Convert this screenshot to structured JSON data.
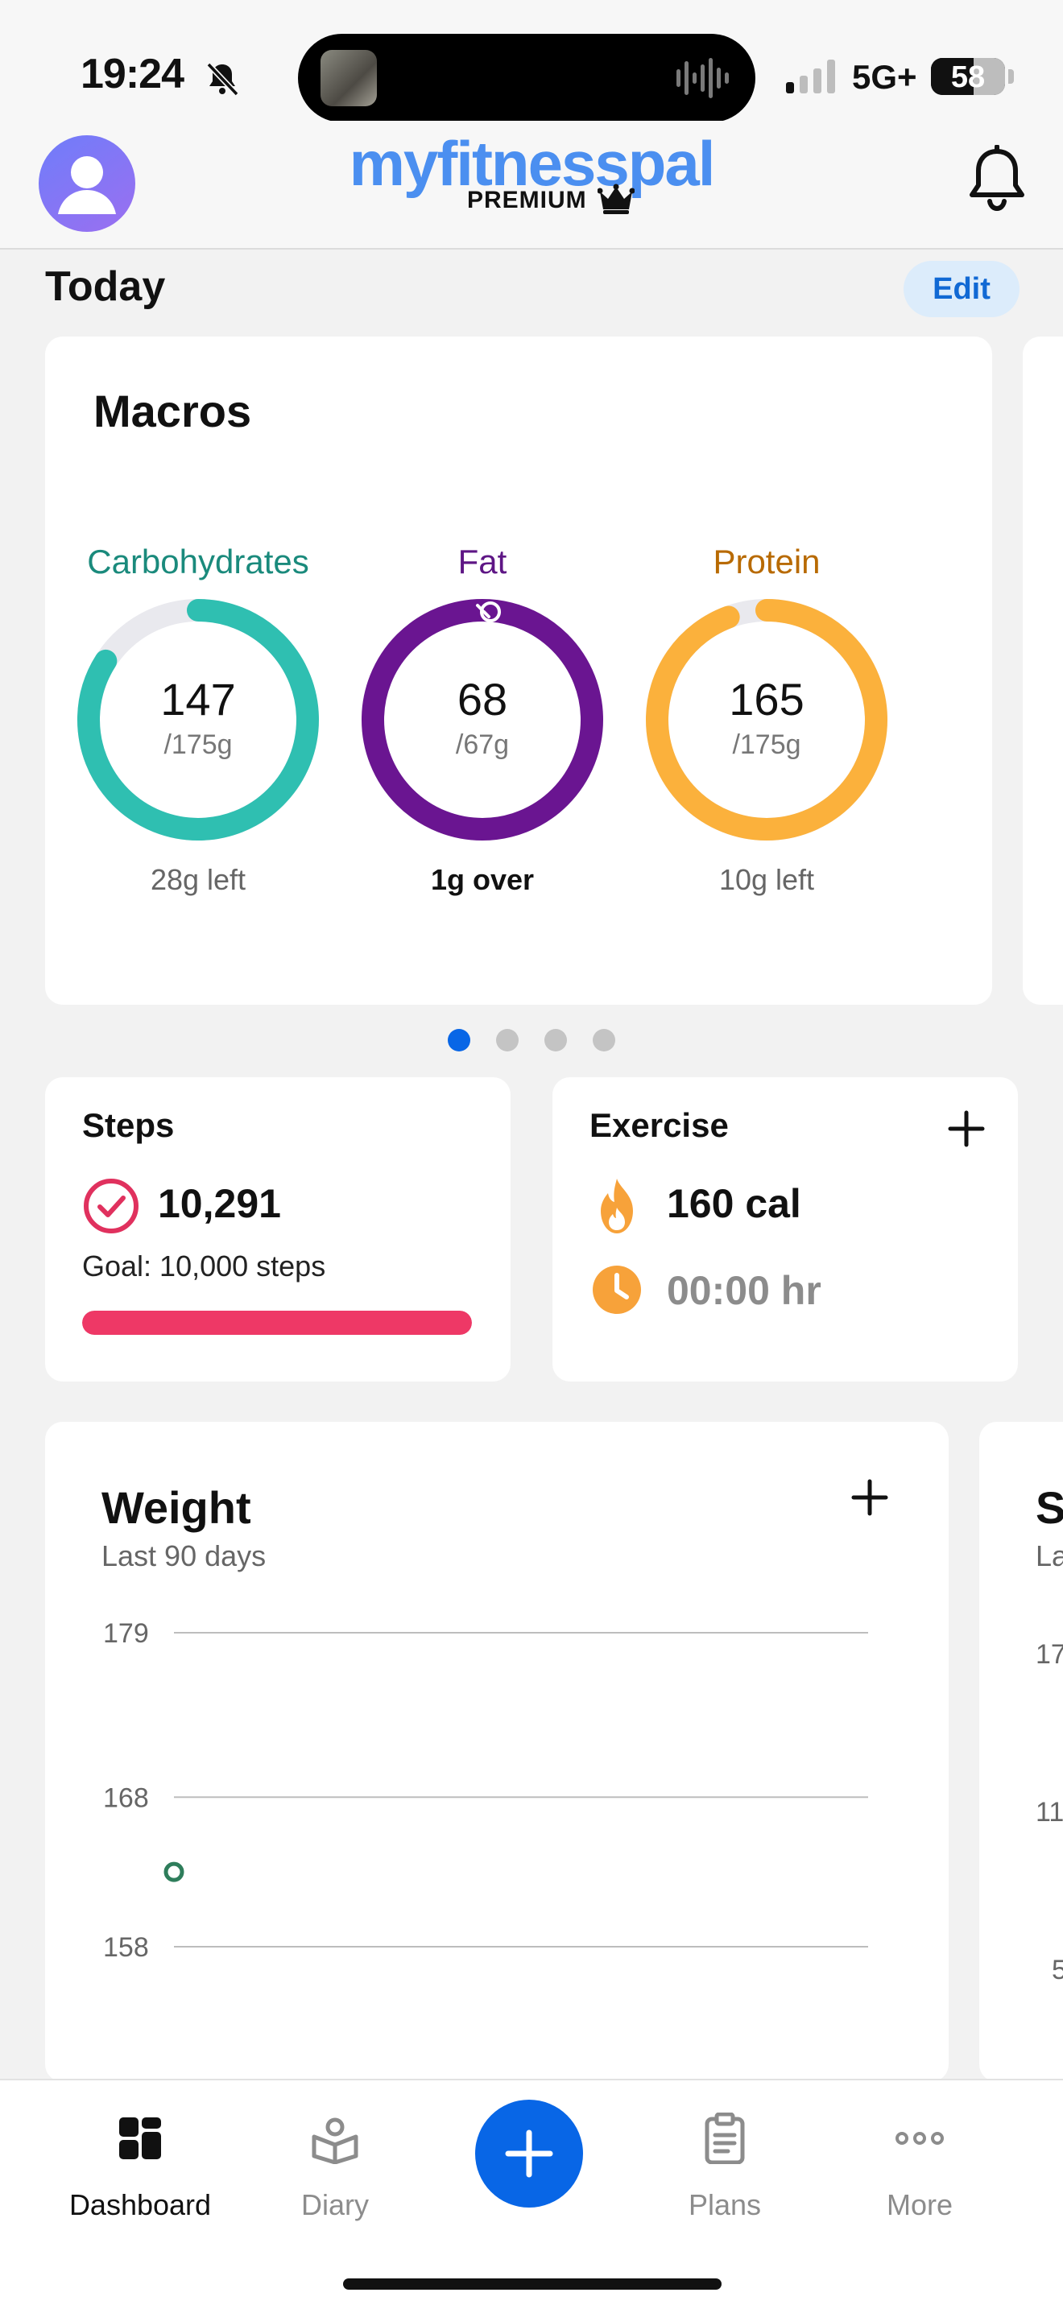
{
  "status_bar": {
    "time": "19:24",
    "network": "5G+",
    "battery": "58",
    "battery_level": 0.58
  },
  "header": {
    "brand": "myfitnesspal",
    "tier": "PREMIUM",
    "icons": [
      "avatar",
      "crown-icon",
      "bell-icon"
    ]
  },
  "today": {
    "title": "Today",
    "edit_label": "Edit"
  },
  "macros": {
    "title": "Macros",
    "items": [
      {
        "name": "Carbohydrates",
        "value": "147",
        "goal": "/175g",
        "remaining": "28g left",
        "fraction": 0.84,
        "color": "#2fbfb1",
        "name_color": "#1a8a7c"
      },
      {
        "name": "Fat",
        "value": "68",
        "goal": "/67g",
        "remaining": "1g over",
        "fraction": 1.015,
        "color": "#6a1591",
        "name_color": "#5e1685"
      },
      {
        "name": "Protein",
        "value": "165",
        "goal": "/175g",
        "remaining": "10g left",
        "fraction": 0.943,
        "color": "#fbb13c",
        "name_color": "#b86a00"
      }
    ]
  },
  "pager": {
    "count": 4,
    "active": 0
  },
  "steps": {
    "title": "Steps",
    "count": "10,291",
    "goal": "Goal: 10,000 steps",
    "progress": 1.0
  },
  "exercise": {
    "title": "Exercise",
    "calories": "160 cal",
    "duration": "00:00 hr"
  },
  "weight": {
    "title": "Weight",
    "subtitle": "Last 90 days",
    "chart_data": {
      "type": "scatter",
      "title": "Weight",
      "subtitle": "Last 90 days",
      "y_ticks": [
        "179",
        "168",
        "158"
      ],
      "ylim": [
        158,
        179
      ],
      "grid": true,
      "points": [
        {
          "y": 163
        }
      ],
      "marker_color": "#2e7d5b"
    }
  },
  "peek_card": {
    "title_fragment": "S",
    "subtitle_fragment": "La",
    "ticks": [
      "17",
      "11",
      "5"
    ]
  },
  "tabs": [
    {
      "label": "Dashboard",
      "icon": "dashboard-icon",
      "active": true
    },
    {
      "label": "Diary",
      "icon": "diary-icon",
      "active": false
    },
    {
      "label": "Plans",
      "icon": "plans-icon",
      "active": false
    },
    {
      "label": "More",
      "icon": "more-icon",
      "active": false
    }
  ],
  "colors": {
    "accent": "#0866e6",
    "steps_bar": "#ee3866",
    "exercise_icons": "#f7a23a"
  }
}
